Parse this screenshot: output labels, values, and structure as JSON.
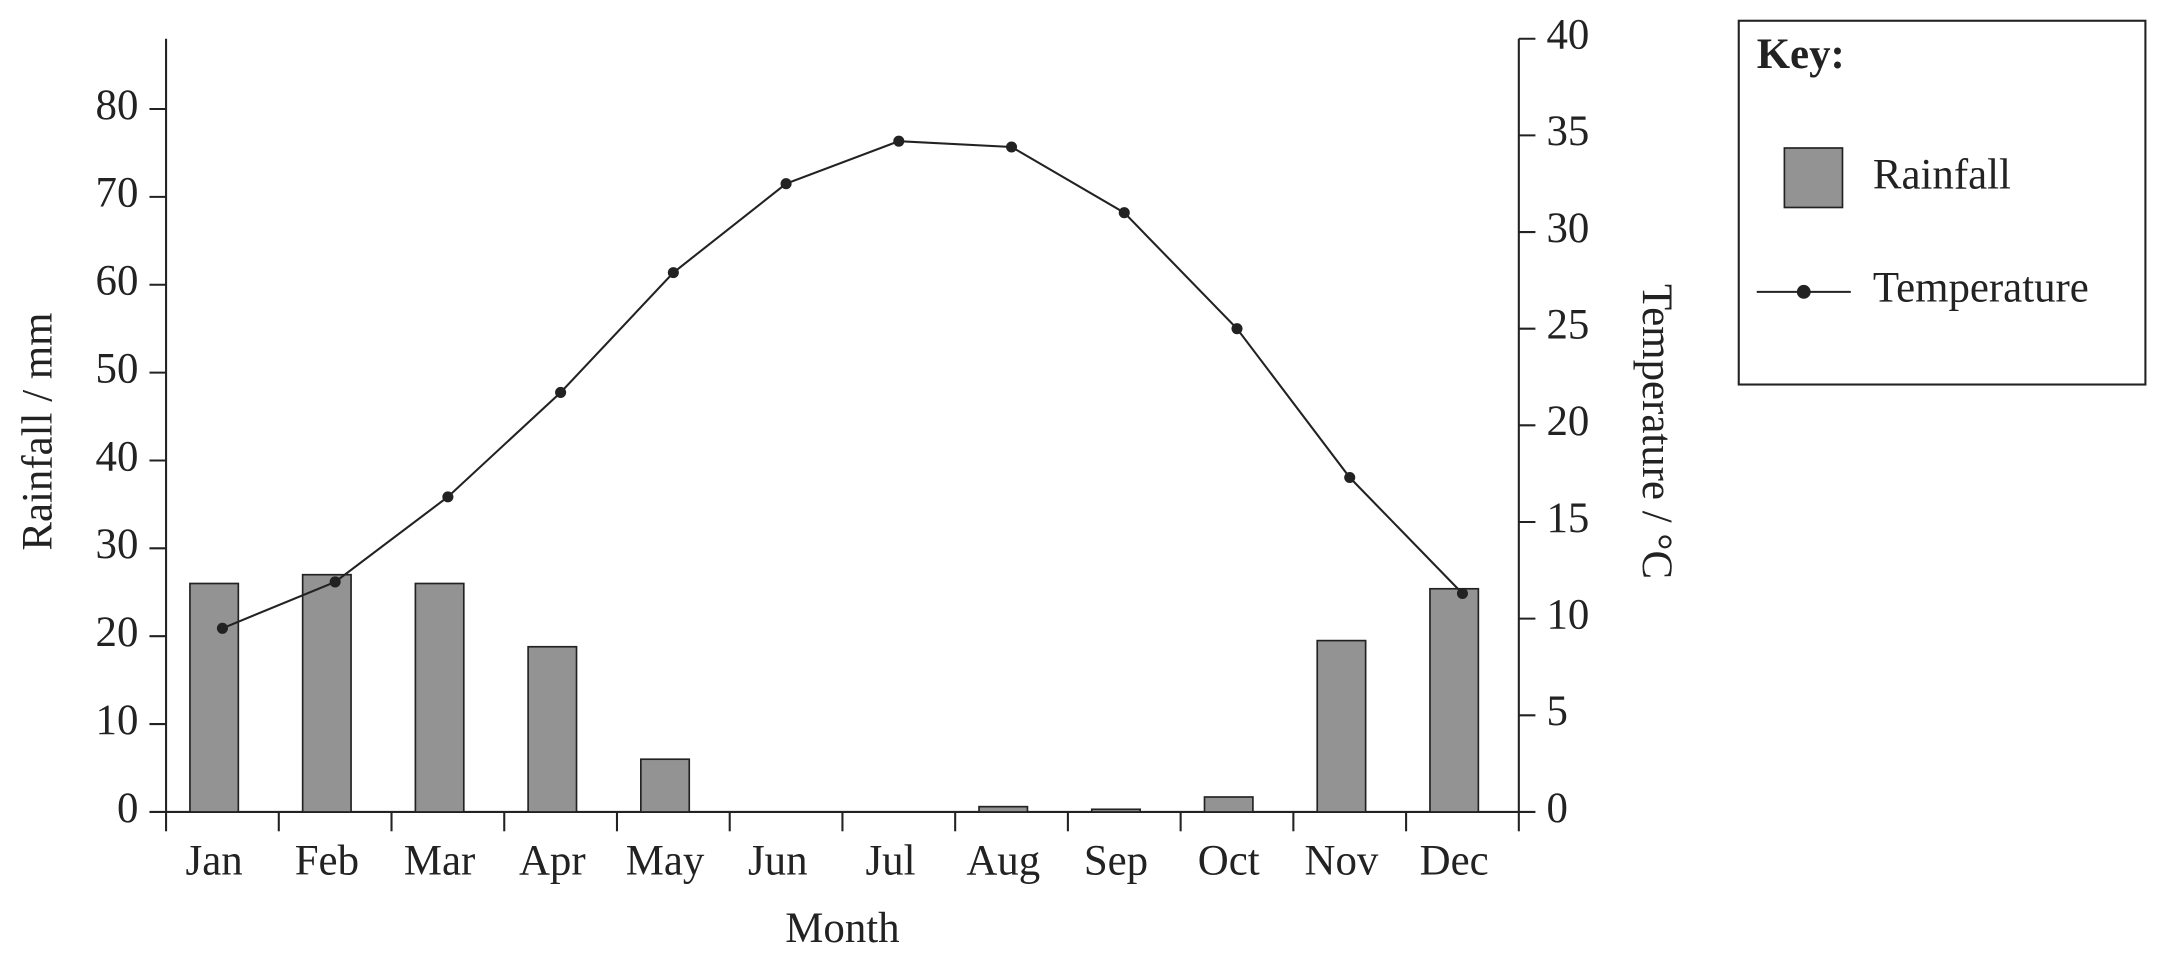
{
  "chart_data": {
    "type": "bar",
    "xlabel": "Month",
    "ylabel": "Rainfall / mm",
    "y2label": "Temperature / °C",
    "categories": [
      "Jan",
      "Feb",
      "Mar",
      "Apr",
      "May",
      "Jun",
      "Jul",
      "Aug",
      "Sep",
      "Oct",
      "Nov",
      "Dec"
    ],
    "series": [
      {
        "name": "Rainfall",
        "type": "bar",
        "color": "#939393",
        "values": [
          26,
          27,
          26,
          18.8,
          6,
          0,
          0,
          0.6,
          0.3,
          1.7,
          19.5,
          25.4
        ]
      },
      {
        "name": "Temperature",
        "type": "line",
        "color": "#222222",
        "axis": "y2",
        "values": [
          9.5,
          11.9,
          16.3,
          21.7,
          27.9,
          32.5,
          34.7,
          34.4,
          31.0,
          25.0,
          17.3,
          11.3
        ]
      }
    ],
    "ylim": [
      0,
      88
    ],
    "yticks": [
      0,
      10,
      20,
      30,
      40,
      50,
      60,
      70,
      80
    ],
    "y2lim": [
      0,
      40
    ],
    "y2ticks": [
      0,
      5,
      10,
      15,
      20,
      25,
      30,
      35,
      40
    ],
    "legend_title": "Key:",
    "legend": "right"
  }
}
